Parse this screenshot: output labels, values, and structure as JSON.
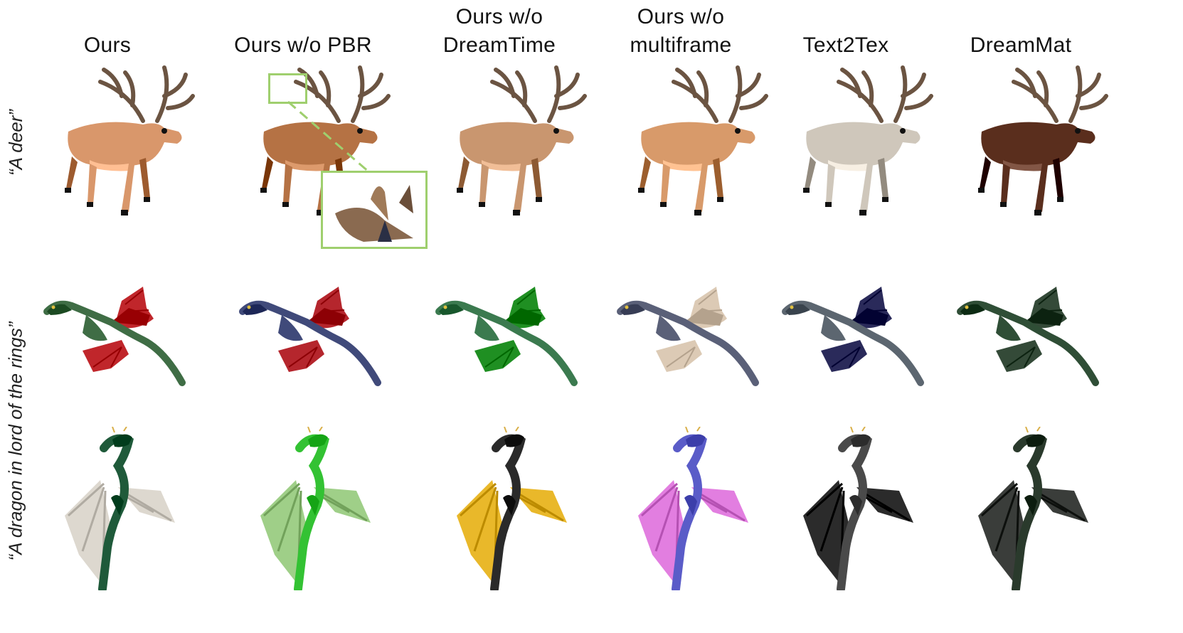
{
  "columns": [
    {
      "id": "ours",
      "lines": [
        "Ours"
      ]
    },
    {
      "id": "no-pbr",
      "lines": [
        "Ours w/o PBR"
      ]
    },
    {
      "id": "no-dreamtime",
      "lines": [
        "Ours w/o",
        "DreamTime"
      ]
    },
    {
      "id": "no-multiframe",
      "lines": [
        "Ours w/o",
        "multiframe"
      ]
    },
    {
      "id": "text2tex",
      "lines": [
        "Text2Tex"
      ]
    },
    {
      "id": "dreammat",
      "lines": [
        "DreamMat"
      ]
    }
  ],
  "rows": [
    {
      "id": "deer",
      "prompt": "“A deer”"
    },
    {
      "id": "dragon",
      "prompt": "“A dragon in lord of the rings”"
    }
  ],
  "colors": {
    "zoom_box": "#9fcf6e",
    "deer": [
      "#d9976b",
      "#b57244",
      "#c9966f",
      "#d89a6a",
      "#cfc7bb",
      "#5a2e1d"
    ],
    "dragon1_body": [
      "#3f6d45",
      "#404a7a",
      "#3b7a4f",
      "#5a6078",
      "#5c6670",
      "#2f4e36"
    ],
    "dragon1_wing": [
      "#c0262b",
      "#b5262d",
      "#1f8f22",
      "#dccab5",
      "#2a2a5a",
      "#344a38"
    ],
    "dragon2_body": [
      "#1f5a3a",
      "#33c233",
      "#2a2a2a",
      "#5a5cc8",
      "#4a4a4a",
      "#2a3a2c"
    ],
    "dragon2_wing": [
      "#ddd8cf",
      "#9fcf88",
      "#e9b82a",
      "#e27ee0",
      "#2b2b2b",
      "#3a3d3a"
    ]
  }
}
